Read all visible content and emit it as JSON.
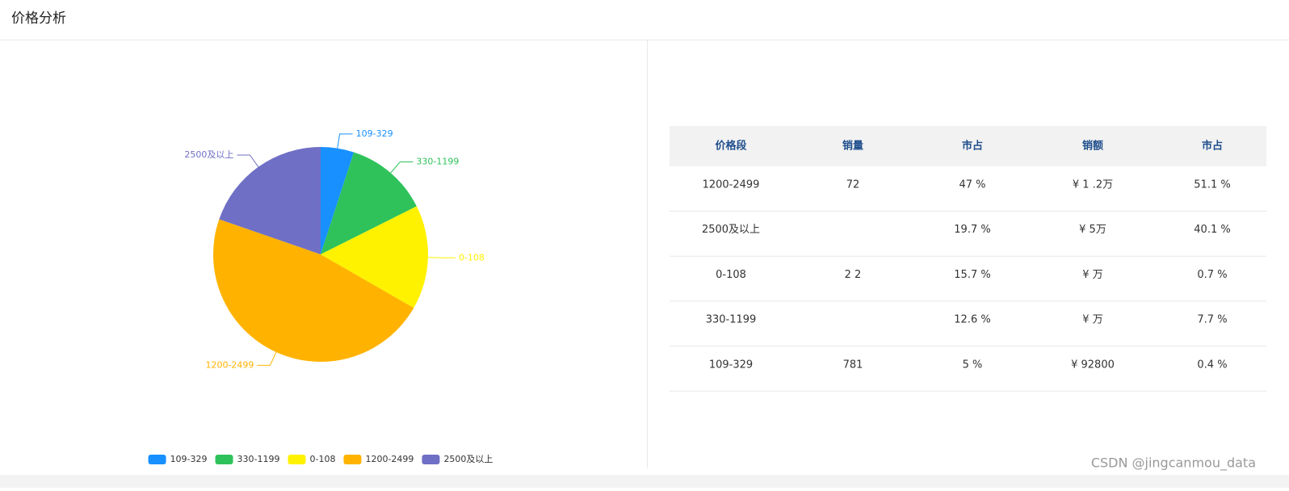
{
  "header": {
    "title": "价格分析"
  },
  "chart_data": {
    "type": "pie",
    "categories": [
      "109-329",
      "330-1199",
      "0-108",
      "1200-2499",
      "2500及以上"
    ],
    "values": [
      5,
      12.6,
      15.7,
      47,
      19.7
    ],
    "colors": [
      "#1890ff",
      "#2fc25b",
      "#fff200",
      "#ffb300",
      "#6f6fc6"
    ],
    "legend": "bottom"
  },
  "table": {
    "header": [
      "价格段",
      "销量",
      "市占",
      "销额",
      "市占"
    ],
    "rows": [
      [
        "1200-2499",
        "72",
        "47 %",
        "¥ 1 .2万",
        "51.1 %"
      ],
      [
        "2500及以上",
        null,
        "19.7 %",
        "¥ 5万",
        "40.1 %"
      ],
      [
        "0-108",
        "2 2",
        "15.7 %",
        "¥ 万",
        "0.7 %"
      ],
      [
        "330-1199",
        null,
        "12.6 %",
        "¥ 万",
        "7.7 %"
      ],
      [
        "109-329",
        "781",
        "5 %",
        "¥ 92800",
        "0.4 %"
      ]
    ]
  },
  "watermark": "CSDN @jingcanmou_data"
}
